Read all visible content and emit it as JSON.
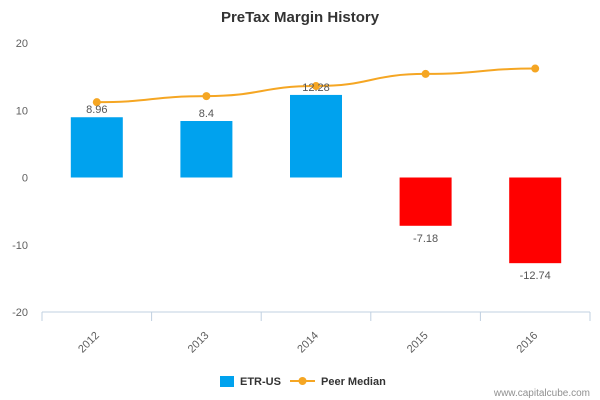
{
  "chart_data": {
    "type": "bar",
    "title": "PreTax Margin History",
    "categories": [
      "2012",
      "2013",
      "2014",
      "2015",
      "2016"
    ],
    "series": [
      {
        "name": "ETR-US",
        "type": "bar",
        "values": [
          8.96,
          8.4,
          12.28,
          -7.18,
          -12.74
        ],
        "data_labels": [
          "8.96",
          "8.4",
          "12.28",
          "-7.18",
          "-12.74"
        ],
        "color_positive": "#00a2ee",
        "color_negative": "#ff0000"
      },
      {
        "name": "Peer Median",
        "type": "line",
        "values": [
          11.2,
          12.1,
          13.6,
          15.4,
          16.2
        ],
        "color": "#f5a623"
      }
    ],
    "yticks": [
      "20",
      "10",
      "0",
      "-10",
      "-20"
    ],
    "ylim": [
      -20,
      20
    ],
    "grid": false,
    "legend_position": "bottom-center"
  },
  "credit": "www.capitalcube.com"
}
